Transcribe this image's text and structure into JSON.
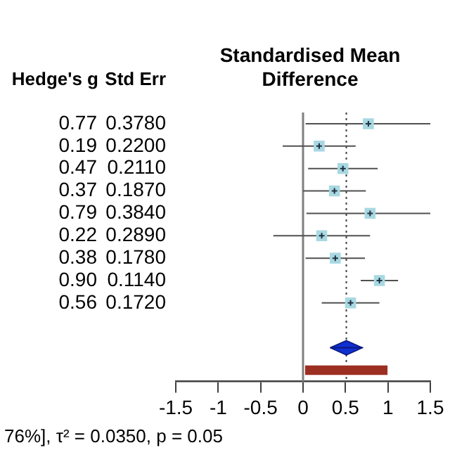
{
  "chart_data": {
    "type": "scatter",
    "orientation": "horizontal",
    "title": "Standardised Mean Difference",
    "categories": [
      null,
      null,
      null,
      null,
      null,
      null,
      null,
      null,
      null,
      null,
      null,
      null
    ],
    "xlim": [
      -1.5,
      1.5
    ],
    "xticks": [
      -1.5,
      -1,
      -0.5,
      0,
      0.5,
      1,
      1.5
    ],
    "grid": false,
    "legend": false,
    "series": [
      {
        "type": "scatter",
        "marker": "square",
        "color": "#a8d8e2",
        "values": [
          0.77,
          0.19,
          0.47,
          0.37,
          0.79,
          0.22,
          0.38,
          0.9,
          0.56,
          null,
          null,
          null
        ],
        "errors": [
          [
            0.03,
            1.5
          ],
          [
            -0.24,
            0.62
          ],
          [
            0.06,
            0.88
          ],
          [
            0.0,
            0.74
          ],
          [
            0.04,
            1.5
          ],
          [
            -0.35,
            0.79
          ],
          [
            0.03,
            0.73
          ],
          [
            0.68,
            1.12
          ],
          [
            0.22,
            0.9
          ],
          null,
          null,
          null
        ],
        "value_labels": [
          "0.77",
          "0.19",
          "0.47",
          "0.37",
          "0.79",
          "0.22",
          "0.38",
          "0.90",
          "0.56",
          null,
          null,
          null
        ]
      },
      {
        "type": "scatter",
        "marker": "diamond",
        "color": "#1030d0",
        "values": [
          null,
          null,
          null,
          null,
          null,
          null,
          null,
          null,
          null,
          null,
          0.51,
          null
        ],
        "errors": [
          null,
          null,
          null,
          null,
          null,
          null,
          null,
          null,
          null,
          null,
          [
            0.32,
            0.7
          ],
          null
        ]
      },
      {
        "type": "bar",
        "color": "#9c2f22",
        "base": [
          null,
          null,
          null,
          null,
          null,
          null,
          null,
          null,
          null,
          null,
          null,
          0.03
        ],
        "values": [
          null,
          null,
          null,
          null,
          null,
          null,
          null,
          null,
          null,
          null,
          null,
          0.96
        ]
      }
    ],
    "ref_lines": [
      {
        "axis": "x",
        "value": 0,
        "line_style": "solid",
        "color": "#808080"
      },
      {
        "axis": "x",
        "value": 0.51,
        "line_style": "dotted",
        "color": "#404040"
      }
    ],
    "annotations": [
      "Hedge's g",
      "Std Err",
      "0.3780",
      "0.2200",
      "0.2110",
      "0.1870",
      "0.3840",
      "0.2890",
      "0.1780",
      "0.1140",
      "0.1720",
      "76%], τ² = 0.0350, p = 0.05"
    ]
  }
}
